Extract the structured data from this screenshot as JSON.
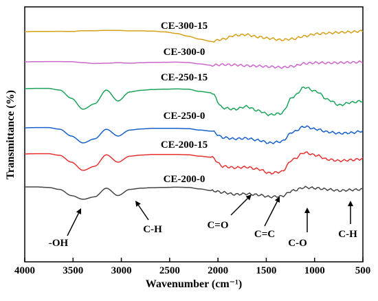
{
  "chart_data": {
    "type": "line",
    "xlabel": "Wavenumber (cm⁻¹)",
    "ylabel": "Transmittance (%)",
    "x_ticks": [
      4000,
      3500,
      3000,
      2500,
      2000,
      1500,
      1000,
      500
    ],
    "xlim": [
      4000,
      500
    ],
    "x_reversed": true,
    "y_ticks_visible": false,
    "grid": false,
    "legend": "none",
    "series": [
      {
        "name": "CE-300-15",
        "color": "#D4A017",
        "offset": 0.0,
        "v": [
          0.0,
          0.01,
          0.01,
          0.02,
          0.01,
          0.06,
          0.06,
          0.08,
          0.08,
          0.05,
          0.05,
          0.03,
          -0.02,
          -0.12,
          -0.3,
          -0.5,
          -0.65,
          -0.5,
          -0.25,
          -0.2,
          -0.35,
          -0.45,
          -0.55,
          -0.48,
          -0.3,
          -0.15,
          -0.1,
          -0.05,
          -0.02,
          0.04
        ]
      },
      {
        "name": "CE-300-0",
        "color": "#CC66CC",
        "offset": 0.0,
        "v": [
          0.0,
          0.01,
          0.02,
          0.02,
          0.01,
          -0.06,
          -0.12,
          -0.1,
          -0.06,
          -0.1,
          -0.06,
          -0.04,
          -0.03,
          -0.02,
          -0.05,
          -0.15,
          -0.25,
          -0.2,
          -0.22,
          -0.28,
          -0.3,
          -0.35,
          -0.4,
          -0.32,
          -0.12,
          -0.06,
          -0.08,
          -0.06,
          -0.04,
          0.0
        ]
      },
      {
        "name": "CE-250-15",
        "color": "#1BA35A",
        "offset": 0.0,
        "v": [
          0.0,
          0.01,
          0.01,
          -0.05,
          -0.35,
          -0.75,
          -0.55,
          -0.05,
          -0.45,
          -0.12,
          -0.06,
          -0.03,
          -0.02,
          -0.01,
          -0.02,
          -0.1,
          -0.15,
          -0.7,
          -0.75,
          -0.65,
          -0.8,
          -0.95,
          -0.9,
          -0.3,
          0.05,
          -0.1,
          -0.4,
          -0.6,
          -0.5,
          -0.45
        ]
      },
      {
        "name": "CE-250-0",
        "color": "#1560CC",
        "offset": 0.0,
        "v": [
          0.0,
          0.01,
          0.01,
          -0.05,
          -0.3,
          -0.55,
          -0.4,
          -0.05,
          -0.3,
          -0.08,
          -0.04,
          -0.02,
          -0.02,
          -0.02,
          -0.03,
          -0.08,
          -0.12,
          -0.35,
          -0.4,
          -0.38,
          -0.45,
          -0.55,
          -0.5,
          -0.15,
          0.05,
          -0.05,
          -0.15,
          -0.2,
          -0.18,
          -0.12
        ]
      },
      {
        "name": "CE-200-15",
        "color": "#E8312E",
        "offset": 0.0,
        "v": [
          0.0,
          0.01,
          0.01,
          -0.05,
          -0.3,
          -0.6,
          -0.45,
          -0.03,
          -0.3,
          -0.08,
          -0.04,
          -0.02,
          -0.02,
          -0.02,
          -0.03,
          -0.08,
          -0.12,
          -0.45,
          -0.5,
          -0.48,
          -0.55,
          -0.7,
          -0.65,
          -0.2,
          0.05,
          -0.05,
          -0.2,
          -0.25,
          -0.22,
          -0.18
        ]
      },
      {
        "name": "CE-200-0",
        "color": "#444444",
        "offset": 0.0,
        "v": [
          0.0,
          0.0,
          -0.02,
          -0.1,
          -0.35,
          -0.5,
          -0.4,
          -0.05,
          -0.35,
          -0.1,
          -0.05,
          -0.03,
          -0.02,
          -0.01,
          -0.02,
          -0.08,
          -0.15,
          -0.22,
          -0.3,
          -0.28,
          -0.32,
          -0.4,
          -0.38,
          -0.15,
          -0.02,
          -0.05,
          -0.1,
          -0.15,
          -0.12,
          -0.1
        ]
      }
    ],
    "series_x_start": 4000,
    "series_x_end": 500,
    "annotations": [
      {
        "text": "-OH",
        "wavenumber": 3450
      },
      {
        "text": "C-H",
        "wavenumber": 2900
      },
      {
        "text": "C=O",
        "wavenumber": 1600
      },
      {
        "text": "C=C",
        "wavenumber": 1410
      },
      {
        "text": "C-O",
        "wavenumber": 1060
      },
      {
        "text": "C-H",
        "wavenumber": 620
      }
    ]
  }
}
